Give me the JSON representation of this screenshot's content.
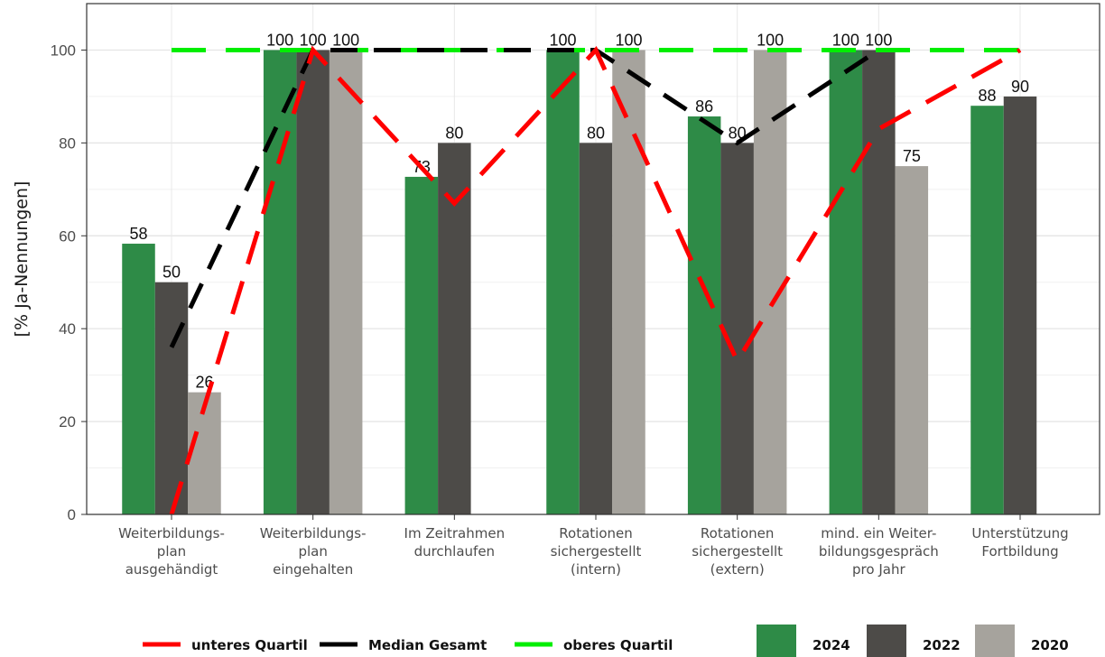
{
  "chart_data": {
    "type": "bar",
    "ylabel": "[% Ja-Nennungen]",
    "xlabel": "",
    "ylim": [
      0,
      110
    ],
    "yticks": [
      0,
      20,
      40,
      60,
      80,
      100
    ],
    "grid": true,
    "legend_position": "bottom",
    "categories": [
      [
        "Weiterbildungs-",
        "plan",
        "ausgehändigt"
      ],
      [
        "Weiterbildungs-",
        "plan",
        "eingehalten"
      ],
      [
        "Im Zeitrahmen",
        "durchlaufen"
      ],
      [
        "Rotationen",
        "sichergestellt",
        "(intern)"
      ],
      [
        "Rotationen",
        "sichergestellt",
        "(extern)"
      ],
      [
        "mind. ein Weiter-",
        "bildungsgespräch",
        "pro Jahr"
      ],
      [
        "Unterstützung",
        "Fortbildung"
      ]
    ],
    "series": [
      {
        "name": "2024",
        "color": "#2e8b47",
        "values": [
          58.3,
          100,
          72.7,
          100,
          85.7,
          100,
          88
        ]
      },
      {
        "name": "2022",
        "color": "#4d4b48",
        "values": [
          50,
          100,
          80,
          80,
          80,
          100,
          90
        ]
      },
      {
        "name": "2020",
        "color": "#a6a39d",
        "values": [
          26.3,
          100,
          null,
          100,
          100,
          75,
          null
        ]
      }
    ],
    "data_labels": [
      [
        "58",
        "100",
        "73",
        "100",
        "86",
        "100",
        "88"
      ],
      [
        "50",
        "100",
        "80",
        "80",
        "80",
        "100",
        "90"
      ],
      [
        "26",
        "100",
        "",
        "100",
        "100",
        "75",
        ""
      ]
    ],
    "lines": [
      {
        "name": "unteres Quartil",
        "color": "#ff0000",
        "values": [
          0,
          100,
          67,
          100,
          33,
          83,
          100
        ]
      },
      {
        "name": "Median Gesamt",
        "color": "#000000",
        "values": [
          36,
          100,
          100,
          100,
          80,
          100,
          null
        ]
      },
      {
        "name": "oberes Quartil",
        "color": "#00ee00",
        "values": [
          100,
          100,
          100,
          100,
          100,
          100,
          100
        ]
      }
    ]
  }
}
